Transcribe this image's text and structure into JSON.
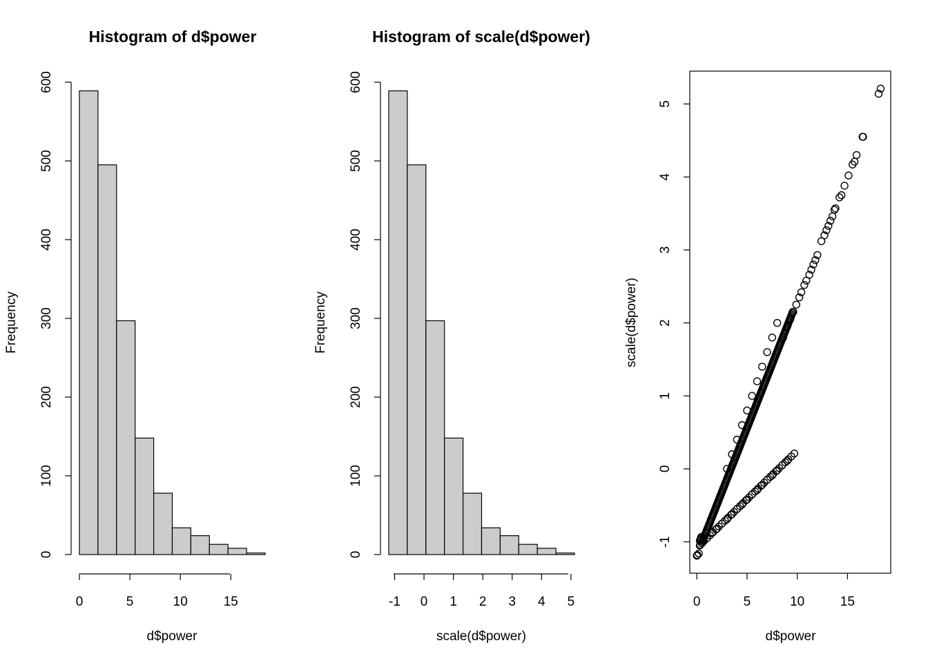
{
  "chart_data": [
    {
      "type": "bar",
      "subtype": "histogram",
      "title": "Histogram of d$power",
      "xlabel": "d$power",
      "ylabel": "Frequency",
      "bin_edges": [
        0,
        1.84,
        3.68,
        5.52,
        7.36,
        9.2,
        11.04,
        12.88,
        14.72,
        16.56,
        18.4
      ],
      "values": [
        589,
        495,
        297,
        148,
        78,
        34,
        24,
        13,
        8,
        2
      ],
      "xlim": [
        0,
        18.4
      ],
      "ylim": [
        0,
        600
      ],
      "xticks": [
        0,
        5,
        10,
        15
      ],
      "xtick_labels": [
        "0",
        "5",
        "10",
        "15"
      ],
      "yticks": [
        0,
        100,
        200,
        300,
        400,
        500,
        600
      ],
      "ytick_labels": [
        "0",
        "100",
        "200",
        "300",
        "400",
        "500",
        "600"
      ],
      "bar_fill": "#cccccc",
      "grid": false
    },
    {
      "type": "bar",
      "subtype": "histogram",
      "title": "Histogram of scale(d$power)",
      "xlabel": "scale(d$power)",
      "ylabel": "Frequency",
      "bin_edges": [
        -1.2,
        -0.568,
        0.064,
        0.696,
        1.328,
        1.96,
        2.592,
        3.224,
        3.856,
        4.488,
        5.12
      ],
      "values": [
        589,
        495,
        297,
        148,
        78,
        34,
        24,
        13,
        8,
        2
      ],
      "xlim": [
        -1.2,
        5.12
      ],
      "ylim": [
        0,
        600
      ],
      "xticks": [
        -1,
        0,
        1,
        2,
        3,
        4,
        5
      ],
      "xtick_labels": [
        "-1",
        "0",
        "1",
        "2",
        "3",
        "4",
        "5"
      ],
      "yticks": [
        0,
        100,
        200,
        300,
        400,
        500,
        600
      ],
      "ytick_labels": [
        "0",
        "100",
        "200",
        "300",
        "400",
        "500",
        "600"
      ],
      "bar_fill": "#cccccc",
      "grid": false
    },
    {
      "type": "scatter",
      "title": "",
      "xlabel": "d$power",
      "ylabel": "scale(d$power)",
      "marker": "open-circle",
      "xlim": [
        -0.7,
        19.3
      ],
      "ylim": [
        -1.43,
        5.45
      ],
      "xticks": [
        0,
        5,
        10,
        15
      ],
      "xtick_labels": [
        "0",
        "5",
        "10",
        "15"
      ],
      "yticks": [
        -1,
        0,
        1,
        2,
        3,
        4,
        5
      ],
      "ytick_labels": [
        "-1",
        "0",
        "1",
        "2",
        "3",
        "4",
        "5"
      ],
      "boxed": true,
      "grid": false,
      "points": [
        [
          0.0,
          -1.19
        ],
        [
          0.05,
          -1.18
        ],
        [
          0.2,
          -1.16
        ],
        [
          0.3,
          -1.05
        ],
        [
          0.35,
          -1.04
        ],
        [
          0.5,
          -1.02
        ],
        [
          0.7,
          -0.99
        ],
        [
          1.0,
          -0.95
        ],
        [
          1.3,
          -0.91
        ],
        [
          1.6,
          -0.87
        ],
        [
          1.9,
          -0.83
        ],
        [
          2.2,
          -0.79
        ],
        [
          2.5,
          -0.75
        ],
        [
          2.8,
          -0.71
        ],
        [
          3.1,
          -0.67
        ],
        [
          3.4,
          -0.63
        ],
        [
          3.7,
          -0.59
        ],
        [
          4.0,
          -0.55
        ],
        [
          4.3,
          -0.51
        ],
        [
          4.6,
          -0.47
        ],
        [
          4.9,
          -0.43
        ],
        [
          5.2,
          -0.39
        ],
        [
          5.5,
          -0.35
        ],
        [
          5.8,
          -0.31
        ],
        [
          6.1,
          -0.27
        ],
        [
          6.4,
          -0.23
        ],
        [
          6.7,
          -0.19
        ],
        [
          7.0,
          -0.15
        ],
        [
          7.3,
          -0.11
        ],
        [
          7.6,
          -0.07
        ],
        [
          7.9,
          -0.03
        ],
        [
          8.2,
          0.01
        ],
        [
          8.5,
          0.05
        ],
        [
          8.8,
          0.09
        ],
        [
          9.1,
          0.13
        ],
        [
          9.4,
          0.17
        ],
        [
          9.7,
          0.21
        ],
        [
          1.0,
          -0.95
        ],
        [
          1.5,
          -0.88
        ],
        [
          2.0,
          -0.82
        ],
        [
          2.5,
          -0.75
        ],
        [
          3.0,
          -0.69
        ],
        [
          3.5,
          -0.62
        ],
        [
          4.0,
          -0.55
        ],
        [
          4.5,
          -0.49
        ],
        [
          5.0,
          -0.42
        ],
        [
          5.5,
          -0.35
        ],
        [
          6.0,
          -0.29
        ],
        [
          6.5,
          -0.22
        ],
        [
          7.0,
          -0.15
        ],
        [
          7.5,
          -0.09
        ],
        [
          8.0,
          -0.02
        ],
        [
          8.5,
          0.05
        ],
        [
          9.0,
          0.11
        ],
        [
          3.0,
          0.0
        ],
        [
          3.5,
          0.2
        ],
        [
          4.0,
          0.4
        ],
        [
          4.5,
          0.6
        ],
        [
          5.0,
          0.8
        ],
        [
          5.5,
          1.0
        ],
        [
          6.0,
          1.2
        ],
        [
          6.5,
          1.4
        ],
        [
          7.0,
          1.6
        ],
        [
          7.5,
          1.8
        ],
        [
          8.0,
          2.0
        ],
        [
          8.6,
          1.8
        ],
        [
          9.0,
          1.95
        ],
        [
          9.3,
          2.05
        ],
        [
          9.6,
          2.15
        ],
        [
          9.9,
          2.25
        ],
        [
          10.2,
          2.35
        ],
        [
          10.4,
          2.42
        ],
        [
          10.7,
          2.52
        ],
        [
          10.9,
          2.58
        ],
        [
          11.2,
          2.66
        ],
        [
          11.4,
          2.73
        ],
        [
          11.6,
          2.8
        ],
        [
          11.8,
          2.86
        ],
        [
          12.0,
          2.93
        ],
        [
          12.4,
          3.12
        ],
        [
          12.7,
          3.2
        ],
        [
          12.9,
          3.27
        ],
        [
          13.1,
          3.33
        ],
        [
          13.3,
          3.4
        ],
        [
          13.5,
          3.46
        ],
        [
          13.7,
          3.55
        ],
        [
          13.8,
          3.57
        ],
        [
          14.2,
          3.72
        ],
        [
          14.4,
          3.75
        ],
        [
          14.7,
          3.88
        ],
        [
          15.1,
          4.02
        ],
        [
          15.5,
          4.17
        ],
        [
          15.7,
          4.21
        ],
        [
          15.9,
          4.3
        ],
        [
          16.5,
          4.55
        ],
        [
          16.55,
          4.55
        ],
        [
          18.1,
          5.14
        ],
        [
          18.3,
          5.21
        ]
      ]
    }
  ]
}
